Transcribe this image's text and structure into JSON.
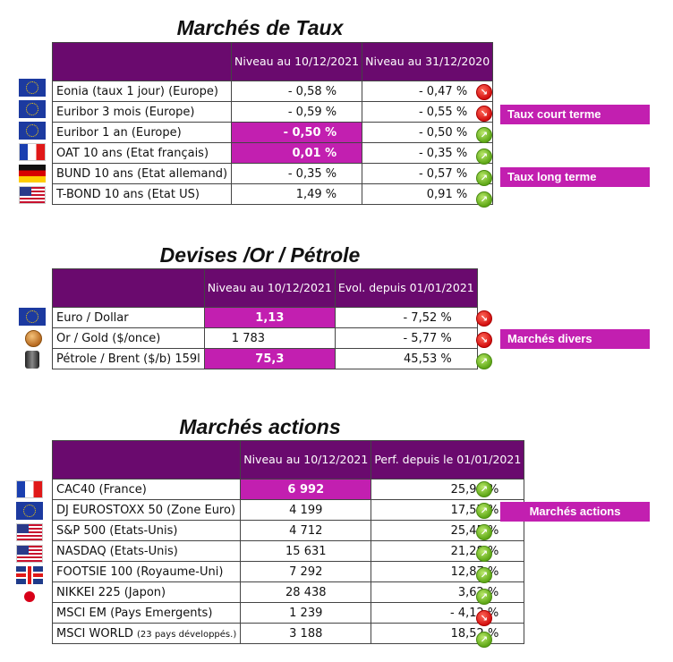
{
  "taux": {
    "title": "Marchés de Taux",
    "col1": "Niveau au 10/12/2021",
    "col2": "Niveau au 31/12/2020",
    "rows": [
      {
        "name": "Eonia (taux 1 jour) (Europe)",
        "v1": "- 0,58 %",
        "v2": "- 0,47 %"
      },
      {
        "name": "Euribor 3 mois (Europe)",
        "v1": "- 0,59 %",
        "v2": "- 0,55 %"
      },
      {
        "name": "Euribor 1 an (Europe)",
        "v1": "- 0,50 %",
        "v2": "- 0,50 %"
      },
      {
        "name": "OAT 10 ans (Etat français)",
        "v1": "0,01 %",
        "v2": "- 0,35 %"
      },
      {
        "name": "BUND 10 ans (Etat allemand)",
        "v1": "- 0,35 %",
        "v2": "- 0,57 %"
      },
      {
        "name": "T-BOND 10 ans (Etat US)",
        "v1": "1,49 %",
        "v2": "0,91 %"
      }
    ],
    "tag_court": "Taux court terme",
    "tag_long": "Taux long terme"
  },
  "devises": {
    "title": "Devises /Or / Pétrole",
    "col1": "Niveau au 10/12/2021",
    "col2": "Evol. depuis 01/01/2021",
    "rows": [
      {
        "name": "Euro / Dollar",
        "v1": "1,13",
        "v2": "- 7,52 %"
      },
      {
        "name": "Or / Gold ($/once)",
        "v1": "1 783",
        "v2": "- 5,77 %"
      },
      {
        "name": "Pétrole / Brent ($/b) 159l",
        "v1": "75,3",
        "v2": "45,53 %"
      }
    ],
    "tag": "Marchés divers"
  },
  "actions": {
    "title": "Marchés actions",
    "col1": "Niveau au 10/12/2021",
    "col2": "Perf. depuis le 01/01/2021",
    "rows": [
      {
        "name": "CAC40 (France)",
        "v1": "6 992",
        "v2": "25,94 %"
      },
      {
        "name": "DJ EUROSTOXX 50 (Zone Euro)",
        "v1": "4 199",
        "v2": "17,57 %"
      },
      {
        "name": "S&P 500 (Etats-Unis)",
        "v1": "4 712",
        "v2": "25,45 %"
      },
      {
        "name": "NASDAQ (Etats-Unis)",
        "v1": "15 631",
        "v2": "21,28 %"
      },
      {
        "name": "FOOTSIE 100 (Royaume-Uni)",
        "v1": "7 292",
        "v2": "12,87 %"
      },
      {
        "name": "NIKKEI 225 (Japon)",
        "v1": "28 438",
        "v2": "3,62 %"
      },
      {
        "name": "MSCI EM (Pays Emergents)",
        "v1": "1 239",
        "v2": "- 4,12 %"
      },
      {
        "name": "MSCI WORLD",
        "name_small": "(23 pays développés.)",
        "v1": "3 188",
        "v2": "18,52 %"
      }
    ],
    "tag": "Marchés actions"
  },
  "colors": {
    "header": "#6a0a6e",
    "highlight": "#c21fb0",
    "up": "#5fa817",
    "down": "#d41010"
  },
  "icons": [
    "eu-flag-icon",
    "fr-flag-icon",
    "de-flag-icon",
    "us-flag-icon",
    "gb-flag-icon",
    "jp-flag-icon",
    "gold-coin-icon",
    "oil-barrel-icon",
    "arrow-up-icon",
    "arrow-down-icon"
  ]
}
